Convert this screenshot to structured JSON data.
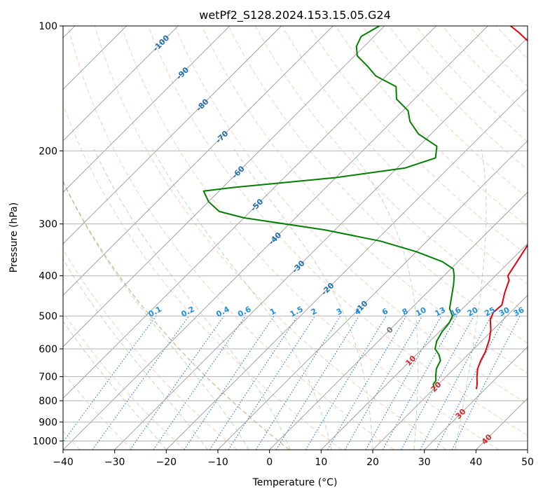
{
  "chart_data": {
    "type": "skew-t",
    "title": "wetPf2_S128.2024.153.15.05.G24",
    "xlabel": "Temperature (°C)",
    "ylabel": "Pressure (hPa)",
    "xlim": [
      -40,
      50
    ],
    "ylim": [
      1050,
      100
    ],
    "y_scale": "log",
    "grid": true,
    "x_ticks": [
      -40,
      -30,
      -20,
      -10,
      0,
      10,
      20,
      30,
      40,
      50
    ],
    "y_ticks": [
      100,
      200,
      300,
      400,
      500,
      600,
      700,
      800,
      900,
      1000
    ],
    "isotherm_labels": [
      {
        "text": "-100",
        "value": -100,
        "p": 110
      },
      {
        "text": "-90",
        "value": -90,
        "p": 130
      },
      {
        "text": "-80",
        "value": -80,
        "p": 155
      },
      {
        "text": "-70",
        "value": -70,
        "p": 185
      },
      {
        "text": "-60",
        "value": -60,
        "p": 225
      },
      {
        "text": "-50",
        "value": -50,
        "p": 270
      },
      {
        "text": "-40",
        "value": -40,
        "p": 325
      },
      {
        "text": "-30",
        "value": -30,
        "p": 380
      },
      {
        "text": "-20",
        "value": -20,
        "p": 430
      },
      {
        "text": "-10",
        "value": -10,
        "p": 475
      },
      {
        "text": "0",
        "value": 0,
        "p": 540
      },
      {
        "text": "10",
        "value": 10,
        "p": 640
      },
      {
        "text": "20",
        "value": 20,
        "p": 740
      },
      {
        "text": "30",
        "value": 30,
        "p": 860
      },
      {
        "text": "40",
        "value": 40,
        "p": 990
      }
    ],
    "mixing_ratio_labels": [
      "0.1",
      "0.2",
      "0.4",
      "0.6",
      "1",
      "1.5",
      "2",
      "3",
      "4",
      "6",
      "8",
      "10",
      "13",
      "16",
      "20",
      "25",
      "30",
      "36"
    ],
    "mixing_ratio_values": [
      0.1,
      0.2,
      0.4,
      0.6,
      1,
      1.5,
      2,
      3,
      4,
      6,
      8,
      10,
      13,
      16,
      20,
      25,
      30,
      36
    ],
    "dry_adiabats_theta_c": [
      -40,
      -30,
      -20,
      -10,
      0,
      10,
      20,
      30,
      40,
      50,
      60,
      70,
      80,
      90,
      100,
      110,
      120,
      130,
      140,
      150,
      160,
      170,
      180,
      190,
      200
    ],
    "moist_adiabats_start_c": [
      -20,
      -12,
      -4,
      4,
      12,
      20,
      28,
      36
    ],
    "series": [
      {
        "name": "",
        "role": "temperature",
        "color": "#e8000b",
        "points": [
          [
            28.3,
            750
          ],
          [
            27.5,
            730
          ],
          [
            26.0,
            700
          ],
          [
            24.6,
            670
          ],
          [
            23.6,
            640
          ],
          [
            22.8,
            610
          ],
          [
            21.2,
            570
          ],
          [
            19.6,
            540
          ],
          [
            17.5,
            510
          ],
          [
            16.7,
            490
          ],
          [
            16.9,
            470
          ],
          [
            15.1,
            440
          ],
          [
            13.5,
            410
          ],
          [
            12.4,
            400
          ],
          [
            11.1,
            360
          ],
          [
            9.6,
            320
          ],
          [
            7.8,
            290
          ],
          [
            5.8,
            260
          ],
          [
            2.3,
            230
          ],
          [
            -1.5,
            200
          ],
          [
            -5.0,
            180
          ],
          [
            -8.5,
            165
          ],
          [
            -11.3,
            155
          ],
          [
            -14.3,
            145
          ],
          [
            -17.7,
            135
          ],
          [
            -21.8,
            125
          ],
          [
            -24.6,
            118
          ],
          [
            -28.5,
            110
          ],
          [
            -32.5,
            104
          ],
          [
            -35.6,
            100
          ]
        ]
      },
      {
        "name": "",
        "role": "dewpoint",
        "color": "#008000",
        "points": [
          [
            20.2,
            750
          ],
          [
            19.0,
            730
          ],
          [
            18.8,
            715
          ],
          [
            18.0,
            700
          ],
          [
            16.6,
            670
          ],
          [
            15.8,
            640
          ],
          [
            14.4,
            620
          ],
          [
            12.5,
            600
          ],
          [
            11.3,
            575
          ],
          [
            10.5,
            545
          ],
          [
            10.2,
            520
          ],
          [
            9.5,
            500
          ],
          [
            7.5,
            480
          ],
          [
            5.6,
            450
          ],
          [
            3.6,
            420
          ],
          [
            2.0,
            400
          ],
          [
            0.5,
            385
          ],
          [
            -3.0,
            370
          ],
          [
            -10.0,
            350
          ],
          [
            -19.0,
            330
          ],
          [
            -32.0,
            310
          ],
          [
            -50.0,
            290
          ],
          [
            -56.0,
            280
          ],
          [
            -60.0,
            265
          ],
          [
            -63.0,
            250
          ],
          [
            -58.0,
            245
          ],
          [
            -40.0,
            232
          ],
          [
            -28.5,
            220
          ],
          [
            -24.5,
            208
          ],
          [
            -26.5,
            195
          ],
          [
            -32.5,
            182
          ],
          [
            -36.5,
            170
          ],
          [
            -39.0,
            160
          ],
          [
            -43.5,
            150
          ],
          [
            -46.0,
            140
          ],
          [
            -52.0,
            132
          ],
          [
            -55.5,
            125
          ],
          [
            -59.5,
            118
          ],
          [
            -61.5,
            112
          ],
          [
            -62.5,
            106
          ],
          [
            -61.0,
            100
          ]
        ]
      }
    ]
  }
}
